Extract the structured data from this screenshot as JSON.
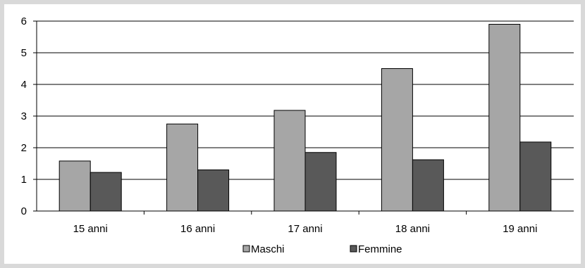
{
  "chart_data": {
    "type": "bar",
    "title": "",
    "xlabel": "",
    "ylabel": "",
    "categories": [
      "15 anni",
      "16 anni",
      "17 anni",
      "18 anni",
      "19 anni"
    ],
    "series": [
      {
        "name": "Maschi",
        "values": [
          1.58,
          2.75,
          3.18,
          4.5,
          5.9
        ],
        "color": "#a6a6a6"
      },
      {
        "name": "Femmine",
        "values": [
          1.22,
          1.3,
          1.85,
          1.62,
          2.18
        ],
        "color": "#595959"
      }
    ],
    "ylim": [
      0,
      6
    ],
    "yticks": [
      0,
      1,
      2,
      3,
      4,
      5,
      6
    ],
    "grid": true,
    "legend": "bottom"
  }
}
